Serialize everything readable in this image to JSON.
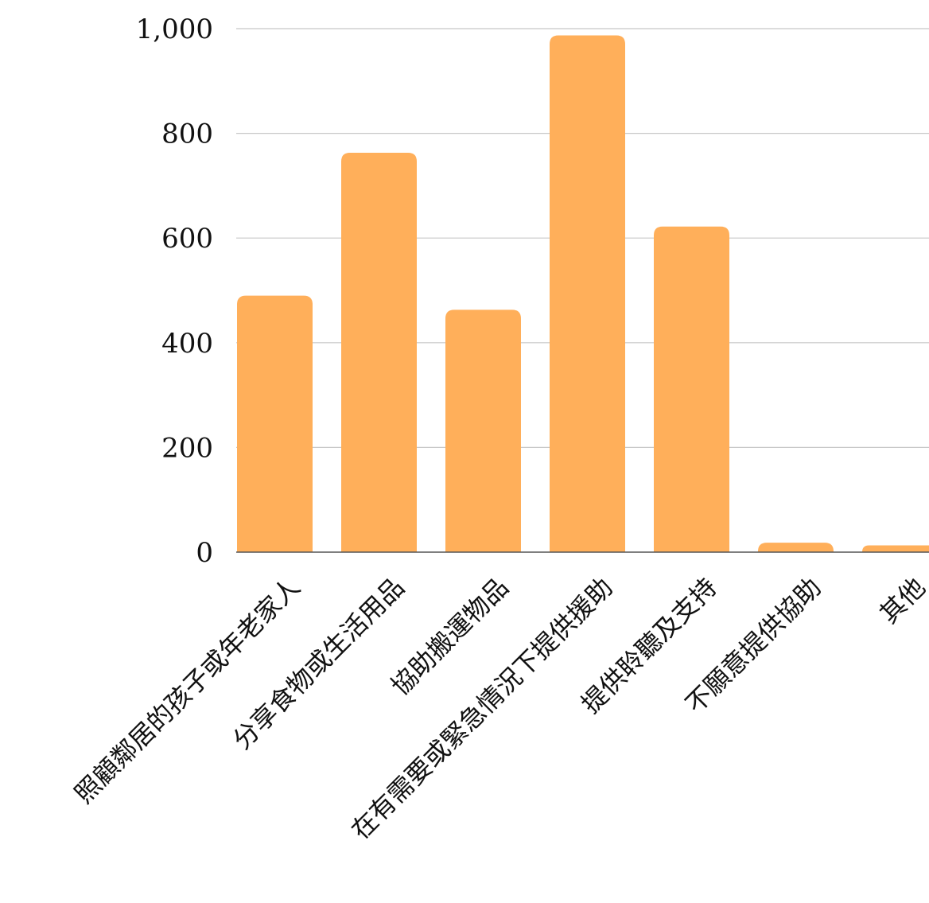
{
  "chart_data": {
    "type": "bar",
    "title": "",
    "xlabel": "",
    "ylabel": "",
    "categories": [
      "照顧鄰居的孩子或年老家人",
      "分享食物或生活用品",
      "協助搬運物品",
      "在有需要或緊急情況下提供援助",
      "提供聆聽及支持",
      "不願意提供協助",
      "其他"
    ],
    "values": [
      490,
      763,
      463,
      987,
      622,
      18,
      13
    ],
    "ylim": [
      0,
      1000
    ],
    "yticks": [
      0,
      200,
      400,
      600,
      800,
      1000
    ],
    "ytick_labels": [
      "0",
      "200",
      "400",
      "600",
      "800",
      "1,000"
    ],
    "grid": true,
    "legend": "none",
    "bar_color": "#FFAF5A"
  }
}
